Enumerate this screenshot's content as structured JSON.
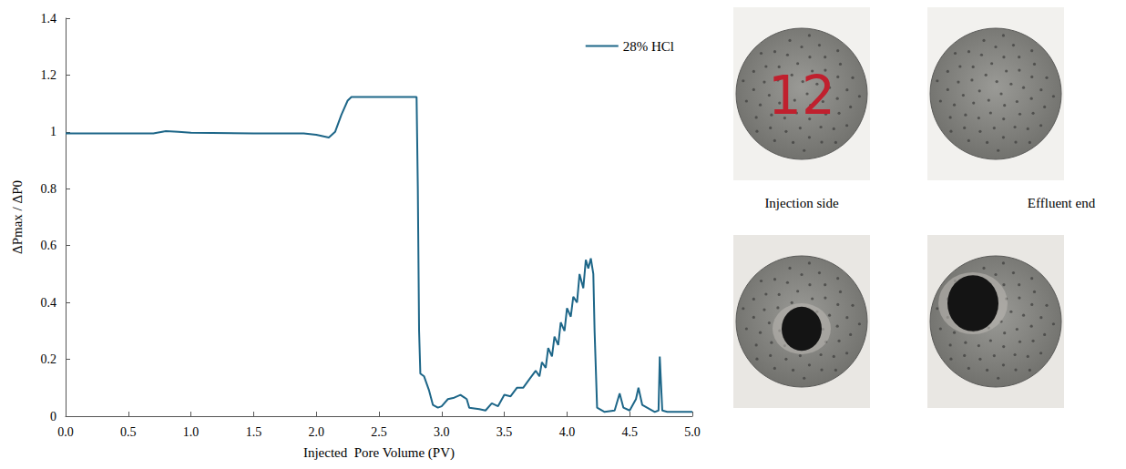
{
  "chart_data": {
    "type": "line",
    "x_label": "Injected  Pore Volume (PV)",
    "y_label": "ΔPmax / ΔP0",
    "x": [
      0,
      0.5,
      0.7,
      0.8,
      0.9,
      1.0,
      1.5,
      1.9,
      2.0,
      2.05,
      2.1,
      2.15,
      2.2,
      2.25,
      2.28,
      2.8,
      2.81,
      2.82,
      2.83,
      2.86,
      2.9,
      2.93,
      2.97,
      3.0,
      3.05,
      3.1,
      3.15,
      3.2,
      3.22,
      3.3,
      3.35,
      3.4,
      3.45,
      3.5,
      3.55,
      3.6,
      3.65,
      3.7,
      3.75,
      3.78,
      3.8,
      3.83,
      3.85,
      3.88,
      3.9,
      3.93,
      3.95,
      3.98,
      4.0,
      4.03,
      4.05,
      4.08,
      4.1,
      4.13,
      4.15,
      4.17,
      4.19,
      4.21,
      4.22,
      4.24,
      4.3,
      4.38,
      4.42,
      4.45,
      4.5,
      4.55,
      4.57,
      4.6,
      4.7,
      4.73,
      4.74,
      4.76,
      4.8,
      5.0
    ],
    "series": [
      {
        "name": "28% HCl",
        "color": "#1d6688",
        "line_style": "solid",
        "marker": "none",
        "values": [
          0.995,
          0.995,
          0.995,
          1.003,
          1.0,
          0.997,
          0.995,
          0.995,
          0.99,
          0.985,
          0.98,
          1.0,
          1.06,
          1.11,
          1.123,
          1.123,
          0.8,
          0.3,
          0.15,
          0.14,
          0.09,
          0.04,
          0.03,
          0.035,
          0.06,
          0.065,
          0.075,
          0.06,
          0.03,
          0.025,
          0.02,
          0.045,
          0.035,
          0.075,
          0.07,
          0.1,
          0.1,
          0.13,
          0.16,
          0.14,
          0.19,
          0.17,
          0.24,
          0.21,
          0.28,
          0.25,
          0.33,
          0.3,
          0.38,
          0.35,
          0.42,
          0.4,
          0.5,
          0.45,
          0.55,
          0.52,
          0.555,
          0.5,
          0.3,
          0.03,
          0.015,
          0.02,
          0.08,
          0.03,
          0.02,
          0.06,
          0.1,
          0.04,
          0.015,
          0.02,
          0.21,
          0.02,
          0.015,
          0.015
        ]
      }
    ],
    "xlim": [
      0,
      5
    ],
    "xticks": [
      {
        "value": 0,
        "label": "0.0"
      },
      {
        "value": 0.5,
        "label": "0.5"
      },
      {
        "value": 1,
        "label": "1.0"
      },
      {
        "value": 1.5,
        "label": "1.5"
      },
      {
        "value": 2,
        "label": "2.0"
      },
      {
        "value": 2.5,
        "label": "2.5"
      },
      {
        "value": 3,
        "label": "3.0"
      },
      {
        "value": 3.5,
        "label": "3.5"
      },
      {
        "value": 4,
        "label": "4.0"
      },
      {
        "value": 4.5,
        "label": "4.5"
      },
      {
        "value": 5,
        "label": "5.0"
      }
    ],
    "ylim": [
      0,
      1.4
    ],
    "yticks": [
      0,
      0.2,
      0.4,
      0.6,
      0.8,
      1,
      1.2,
      1.4
    ],
    "grid": false,
    "legend": "upper right"
  },
  "photos": {
    "sample_mark": "12",
    "labels": [
      "Injection side",
      "Effluent end"
    ]
  }
}
